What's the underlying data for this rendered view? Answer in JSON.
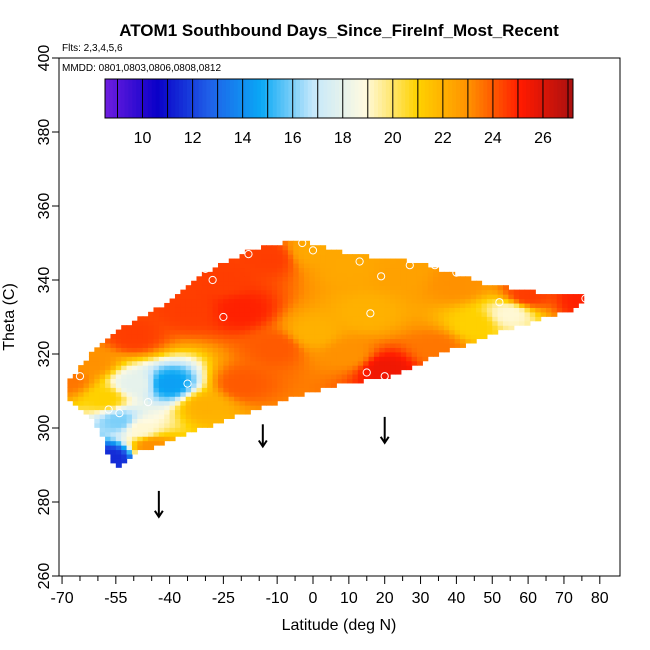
{
  "chart_data": {
    "type": "heatmap",
    "title": "ATOM1 Southbound Days_Since_FireInf_Most_Recent",
    "subtitle_flights": "Flts: 2,3,4,5,6",
    "subtitle_dates": "MMDD: 0801,0803,0806,0808,0812",
    "xlabel": "Latitude (deg N)",
    "ylabel": "Theta (C)",
    "xlim": [
      -70,
      85
    ],
    "ylim": [
      260,
      400
    ],
    "x_major_ticks": [
      -70,
      -55,
      -40,
      -25,
      -10,
      0,
      10,
      20,
      30,
      40,
      50,
      60,
      70,
      80
    ],
    "x_minor_ticks": [
      -65,
      -60,
      -50,
      -45,
      -35,
      -30,
      -20,
      -15,
      -5,
      5,
      15,
      25,
      35,
      45,
      55,
      65,
      75
    ],
    "y_ticks": [
      260,
      280,
      300,
      320,
      340,
      360,
      380,
      400
    ],
    "colorbar": {
      "range": [
        8.5,
        27.2
      ],
      "tick_labels": [
        10,
        12,
        14,
        16,
        18,
        20,
        22,
        24,
        26
      ],
      "colors": [
        "#6f1de0",
        "#0a00c8",
        "#1f5fe8",
        "#0aa8f5",
        "#c5e8fb",
        "#fffae0",
        "#ffd200",
        "#ff9000",
        "#ff1a00",
        "#aa1010"
      ]
    },
    "surface_nodes": [
      {
        "lat": -68,
        "theta": 313,
        "value": 23.5
      },
      {
        "lat": -62,
        "theta": 318,
        "value": 23
      },
      {
        "lat": -50,
        "theta": 325,
        "value": 24.5
      },
      {
        "lat": -35,
        "theta": 332,
        "value": 24.5
      },
      {
        "lat": -25,
        "theta": 340,
        "value": 24.5
      },
      {
        "lat": -12,
        "theta": 346,
        "value": 24.5
      },
      {
        "lat": 0,
        "theta": 348,
        "value": 22.3
      },
      {
        "lat": 10,
        "theta": 344,
        "value": 22.3
      },
      {
        "lat": 25,
        "theta": 342,
        "value": 22.5
      },
      {
        "lat": 40,
        "theta": 339,
        "value": 23
      },
      {
        "lat": 60,
        "theta": 336,
        "value": 24.5
      },
      {
        "lat": 76,
        "theta": 335,
        "value": 25
      },
      {
        "lat": 55,
        "theta": 331,
        "value": 19
      },
      {
        "lat": 45,
        "theta": 328,
        "value": 21
      },
      {
        "lat": 35,
        "theta": 322,
        "value": 23.5
      },
      {
        "lat": 20,
        "theta": 316,
        "value": 25.5
      },
      {
        "lat": 10,
        "theta": 320,
        "value": 23
      },
      {
        "lat": 0,
        "theta": 326,
        "value": 22
      },
      {
        "lat": -10,
        "theta": 322,
        "value": 24
      },
      {
        "lat": -20,
        "theta": 312,
        "value": 24
      },
      {
        "lat": -30,
        "theta": 306,
        "value": 22
      },
      {
        "lat": -40,
        "theta": 312,
        "value": 14.5
      },
      {
        "lat": -50,
        "theta": 312,
        "value": 18
      },
      {
        "lat": -58,
        "theta": 308,
        "value": 21
      },
      {
        "lat": -48,
        "theta": 300,
        "value": 19
      },
      {
        "lat": -54,
        "theta": 302,
        "value": 16
      },
      {
        "lat": -56,
        "theta": 292,
        "value": 11.5
      },
      {
        "lat": -45,
        "theta": 295,
        "value": 23
      },
      {
        "lat": -20,
        "theta": 332,
        "value": 25
      },
      {
        "lat": 15,
        "theta": 331,
        "value": 22
      }
    ],
    "observation_points": [
      {
        "lat": -65,
        "theta": 314
      },
      {
        "lat": -57,
        "theta": 305
      },
      {
        "lat": -54,
        "theta": 304
      },
      {
        "lat": -46,
        "theta": 307
      },
      {
        "lat": -35,
        "theta": 312
      },
      {
        "lat": -25,
        "theta": 330
      },
      {
        "lat": -28,
        "theta": 340
      },
      {
        "lat": -30,
        "theta": 343
      },
      {
        "lat": -18,
        "theta": 347
      },
      {
        "lat": -3,
        "theta": 350
      },
      {
        "lat": 0,
        "theta": 348
      },
      {
        "lat": 13,
        "theta": 345
      },
      {
        "lat": 16,
        "theta": 331
      },
      {
        "lat": 19,
        "theta": 341
      },
      {
        "lat": 27,
        "theta": 344
      },
      {
        "lat": 34,
        "theta": 344
      },
      {
        "lat": 40,
        "theta": 342
      },
      {
        "lat": 15,
        "theta": 315
      },
      {
        "lat": 20,
        "theta": 314
      },
      {
        "lat": 52,
        "theta": 334
      },
      {
        "lat": 76,
        "theta": 335
      }
    ],
    "arrows": [
      {
        "lat": -43,
        "theta_top": 283,
        "theta_bottom": 276
      },
      {
        "lat": -14,
        "theta_top": 301,
        "theta_bottom": 295
      },
      {
        "lat": 20,
        "theta_top": 303,
        "theta_bottom": 296
      }
    ]
  }
}
